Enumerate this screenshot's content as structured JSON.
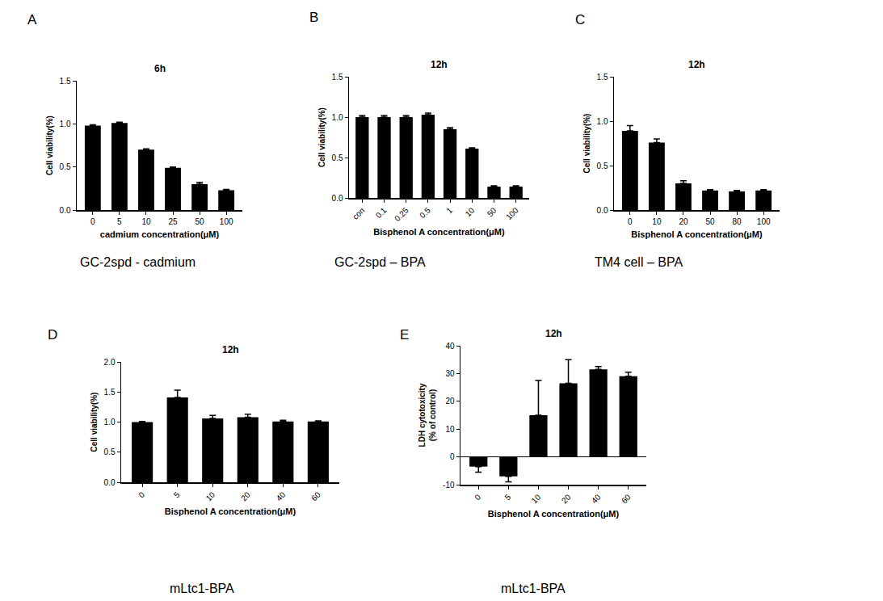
{
  "chart_data": [
    {
      "type": "bar",
      "panel_label": "A",
      "title": "6h",
      "caption": "GC-2spd - cadmium",
      "x_label": "cadmium concentration(μM)",
      "y_label": "Cell viability(%)",
      "categories": [
        "0",
        "5",
        "10",
        "25",
        "50",
        "100"
      ],
      "values": [
        0.98,
        1.01,
        0.7,
        0.49,
        0.3,
        0.23
      ],
      "errors": [
        0.01,
        0.01,
        0.01,
        0.01,
        0.02,
        0.01
      ],
      "color": "#000000",
      "ylim": [
        0,
        1.5
      ],
      "yticks": [
        {
          "value": 0,
          "label": "0.0"
        },
        {
          "value": 0.5,
          "label": "0.5"
        },
        {
          "value": 1,
          "label": "1.0"
        },
        {
          "value": 1.5,
          "label": "1.5"
        }
      ]
    },
    {
      "type": "bar",
      "panel_label": "B",
      "title": "12h",
      "caption": "GC-2spd – BPA",
      "x_label": "Bisphenol A concentration(μM)",
      "y_label": "Cell viability(%)",
      "categories": [
        "con",
        "0.1",
        "0.25",
        "0.5",
        "1",
        "10",
        "50",
        "100"
      ],
      "values": [
        1.0,
        1.0,
        1.0,
        1.03,
        0.85,
        0.61,
        0.14,
        0.14
      ],
      "errors": [
        0.02,
        0.02,
        0.02,
        0.02,
        0.02,
        0.01,
        0.01,
        0.01
      ],
      "color": "#000000",
      "ylim": [
        0,
        1.5
      ],
      "yticks": [
        {
          "value": 0,
          "label": "0.0"
        },
        {
          "value": 0.5,
          "label": "0.5"
        },
        {
          "value": 1,
          "label": "1.0"
        },
        {
          "value": 1.5,
          "label": "1.5"
        }
      ]
    },
    {
      "type": "bar",
      "panel_label": "C",
      "title": "12h",
      "caption": "TM4 cell – BPA",
      "x_label": "Bisphenol A concentration(μM)",
      "y_label": "Cell viability(%)",
      "categories": [
        "0",
        "10",
        "20",
        "50",
        "80",
        "100"
      ],
      "values": [
        0.89,
        0.76,
        0.3,
        0.22,
        0.21,
        0.22
      ],
      "errors": [
        0.06,
        0.04,
        0.03,
        0.01,
        0.01,
        0.01
      ],
      "color": "#000000",
      "ylim": [
        0,
        1.5
      ],
      "yticks": [
        {
          "value": 0,
          "label": "0.0"
        },
        {
          "value": 0.5,
          "label": "0.5"
        },
        {
          "value": 1,
          "label": "1.0"
        },
        {
          "value": 1.5,
          "label": "1.5"
        }
      ]
    },
    {
      "type": "bar",
      "panel_label": "D",
      "title": "12h",
      "caption": "mLtc1-BPA",
      "x_label": "Bisphenol A concentration(μM)",
      "y_label": "Cell viability(%)",
      "categories": [
        "0",
        "5",
        "10",
        "20",
        "40",
        "60"
      ],
      "values": [
        1.0,
        1.41,
        1.06,
        1.08,
        1.01,
        1.01
      ],
      "errors": [
        0.01,
        0.12,
        0.05,
        0.05,
        0.02,
        0.01
      ],
      "color": "#000000",
      "ylim": [
        0,
        2
      ],
      "yticks": [
        {
          "value": 0,
          "label": "0.0"
        },
        {
          "value": 0.5,
          "label": "0.5"
        },
        {
          "value": 1,
          "label": "1.0"
        },
        {
          "value": 1.5,
          "label": "1.5"
        },
        {
          "value": 2,
          "label": "2.0"
        }
      ]
    },
    {
      "type": "bar",
      "panel_label": "E",
      "title": "12h",
      "caption": "mLtc1-BPA",
      "x_label": "Bisphenol A concentration(μM)",
      "y_label": "LDH cytotoxicity\n(% of control)",
      "categories": [
        "0",
        "5",
        "10",
        "20",
        "40",
        "60"
      ],
      "values": [
        -3.5,
        -7,
        15,
        26.5,
        31.5,
        29
      ],
      "errors": [
        2,
        2,
        12.5,
        8.5,
        1,
        1.5
      ],
      "color": "#000000",
      "ylim": [
        -10,
        40
      ],
      "yticks": [
        -10,
        0,
        10,
        20,
        30,
        40
      ]
    }
  ]
}
